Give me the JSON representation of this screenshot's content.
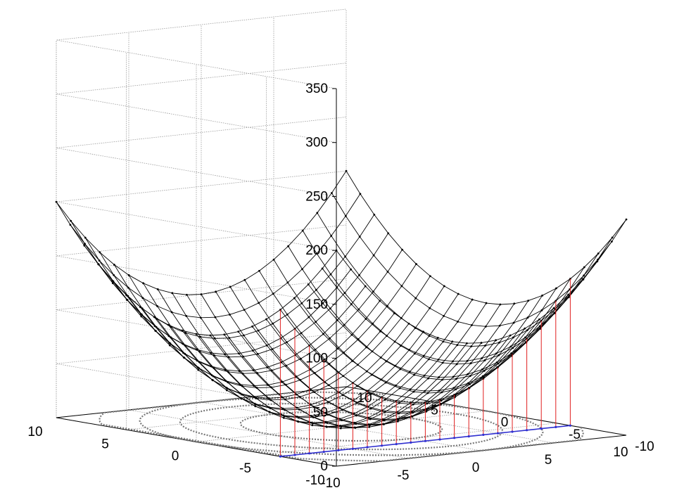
{
  "chart_data": {
    "type": "surface",
    "function": "z = x^2 + y^2",
    "x": [
      -10,
      -9,
      -8,
      -7,
      -6,
      -5,
      -4,
      -3,
      -2,
      -1,
      0,
      1,
      2,
      3,
      4,
      5,
      6,
      7,
      8,
      9,
      10
    ],
    "y": [
      -10,
      -9,
      -8,
      -7,
      -6,
      -5,
      -4,
      -3,
      -2,
      -1,
      0,
      1,
      2,
      3,
      4,
      5,
      6,
      7,
      8,
      9,
      10
    ],
    "xlim": [
      -10,
      10
    ],
    "ylim": [
      -10,
      10
    ],
    "zlim": [
      0,
      350
    ],
    "x_ticks": [
      "-10",
      "-5",
      "0",
      "5",
      "10"
    ],
    "y_ticks": [
      "-10",
      "-5",
      "0",
      "5",
      "10"
    ],
    "z_ticks": [
      "0",
      "50",
      "100",
      "150",
      "200",
      "250",
      "300",
      "350"
    ],
    "grid": true,
    "contours": {
      "levels": [
        25,
        64,
        100,
        144,
        196
      ]
    },
    "path": {
      "description_free": true,
      "y": -6,
      "x": [
        -10,
        -9,
        -8,
        -7,
        -6,
        -5,
        -4,
        -3,
        -2,
        -1,
        0,
        1,
        2,
        3,
        4,
        5,
        6,
        7,
        8,
        9,
        10
      ]
    },
    "colors": {
      "surface": "#000000",
      "stems": "#e02020",
      "path": "#3030d0",
      "contours": "#7a7a7a",
      "grid": "#9a9a9a"
    }
  }
}
